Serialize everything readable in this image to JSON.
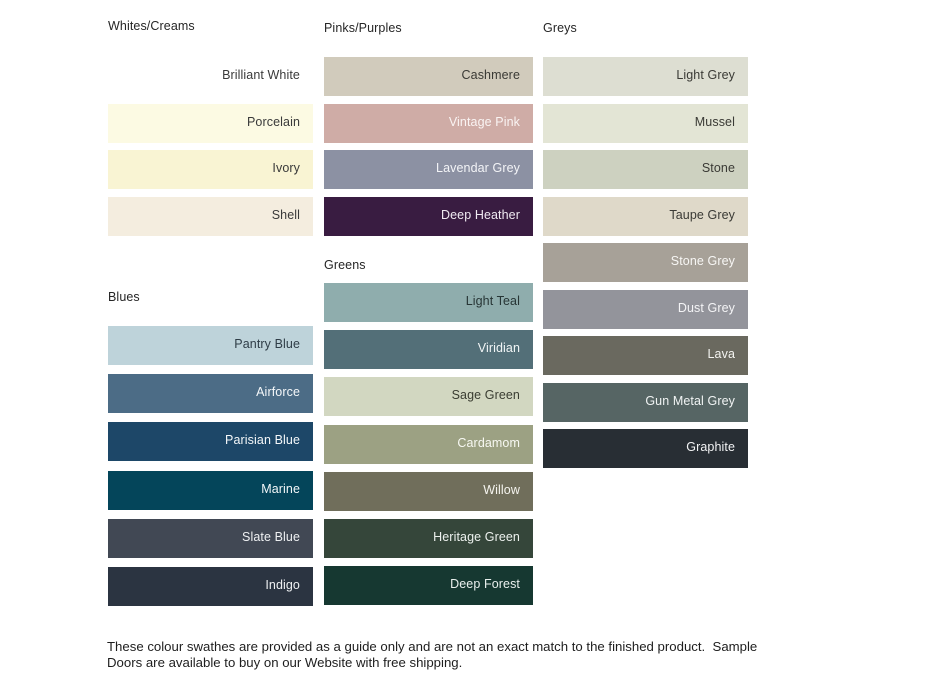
{
  "page": {
    "background": "#ffffff"
  },
  "columns": [
    {
      "groups": [
        {
          "title": "Whites/Creams",
          "swatches": [
            {
              "label": "Brilliant White",
              "bg": "#ffffff",
              "text": "#3a3a3a"
            },
            {
              "label": "Porcelain",
              "bg": "#fcfae3",
              "text": "#3a3a3a"
            },
            {
              "label": "Ivory",
              "bg": "#f9f4d3",
              "text": "#3a3a3a"
            },
            {
              "label": "Shell",
              "bg": "#f4eddf",
              "text": "#3a3a3a"
            }
          ]
        },
        {
          "title": "Blues",
          "swatches": [
            {
              "label": "Pantry Blue",
              "bg": "#bed3da",
              "text": "#2f3d47"
            },
            {
              "label": "Airforce",
              "bg": "#4c6c86",
              "text": "#f4f7f9"
            },
            {
              "label": "Parisian Blue",
              "bg": "#1d4768",
              "text": "#f4f7f9"
            },
            {
              "label": "Marine",
              "bg": "#04455a",
              "text": "#f2f6f8"
            },
            {
              "label": "Slate Blue",
              "bg": "#414854",
              "text": "#eef0f2"
            },
            {
              "label": "Indigo",
              "bg": "#2b3441",
              "text": "#eef0f2"
            }
          ]
        }
      ]
    },
    {
      "groups": [
        {
          "title": "Pinks/Purples",
          "swatches": [
            {
              "label": "Cashmere",
              "bg": "#d1cbbc",
              "text": "#3a3a35"
            },
            {
              "label": "Vintage Pink",
              "bg": "#cfaca6",
              "text": "#faf4f3"
            },
            {
              "label": "Lavendar Grey",
              "bg": "#8c91a3",
              "text": "#f3f4f7"
            },
            {
              "label": "Deep Heather",
              "bg": "#391c41",
              "text": "#f0eaf2"
            }
          ]
        },
        {
          "title": "Greens",
          "swatches": [
            {
              "label": "Light Teal",
              "bg": "#8fadad",
              "text": "#273535"
            },
            {
              "label": "Viridian",
              "bg": "#536f78",
              "text": "#f1f5f6"
            },
            {
              "label": "Sage Green",
              "bg": "#d2d7c1",
              "text": "#3a3d32"
            },
            {
              "label": "Cardamom",
              "bg": "#9ca183",
              "text": "#f7f8f2"
            },
            {
              "label": "Willow",
              "bg": "#706e5b",
              "text": "#f5f4ef"
            },
            {
              "label": "Heritage Green",
              "bg": "#35463a",
              "text": "#edf1ee"
            },
            {
              "label": "Deep Forest",
              "bg": "#163831",
              "text": "#e9efed"
            }
          ]
        }
      ]
    },
    {
      "groups": [
        {
          "title": "Greys",
          "swatches": [
            {
              "label": "Light Grey",
              "bg": "#ddded2",
              "text": "#3a3a35"
            },
            {
              "label": "Mussel",
              "bg": "#e3e5d5",
              "text": "#3a3a35"
            },
            {
              "label": "Stone",
              "bg": "#cdd1c0",
              "text": "#3a3a35"
            },
            {
              "label": "Taupe Grey",
              "bg": "#dfd9c9",
              "text": "#3a3a35"
            },
            {
              "label": "Stone Grey",
              "bg": "#a7a198",
              "text": "#f7f6f4"
            },
            {
              "label": "Dust Grey",
              "bg": "#93949b",
              "text": "#f4f4f6"
            },
            {
              "label": "Lava",
              "bg": "#6a695f",
              "text": "#f4f4f1"
            },
            {
              "label": "Gun Metal Grey",
              "bg": "#566564",
              "text": "#f0f3f3"
            },
            {
              "label": "Graphite",
              "bg": "#282e34",
              "text": "#f2f3f4"
            }
          ]
        }
      ]
    }
  ],
  "footer": {
    "line1": "These colour swathes are provided as a guide only and are not an exact match to the finished product.  Sample",
    "line2": "Doors are available to buy on our Website with free shipping."
  }
}
